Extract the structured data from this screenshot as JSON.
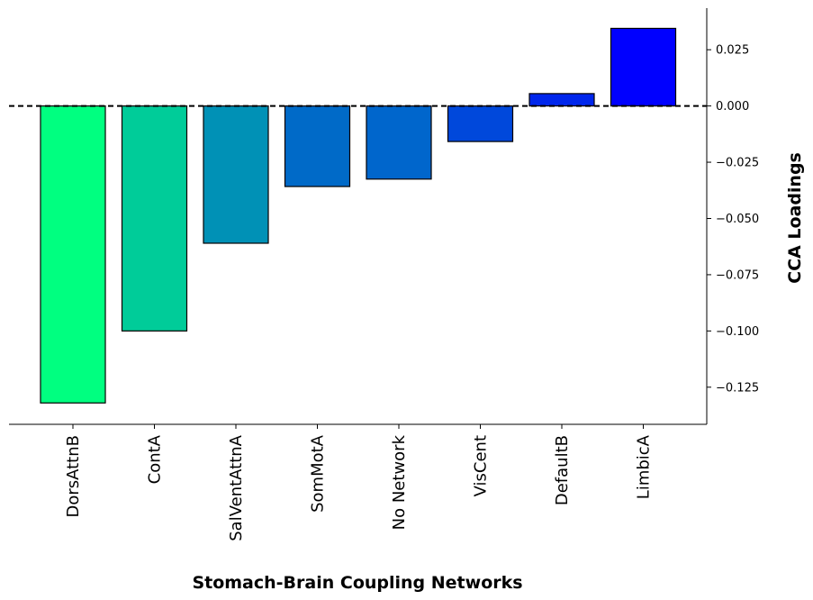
{
  "chart_data": {
    "type": "bar",
    "title": "",
    "xlabel": "Stomach-Brain Coupling Networks",
    "ylabel": "CCA Loadings",
    "ylabel_position": "right",
    "grid": false,
    "legend": "none",
    "reference_line": {
      "y": 0.0,
      "style": "dashed",
      "color": "#000000"
    },
    "ylim": [
      -0.1415,
      0.0435
    ],
    "yticks": [
      0.025,
      0.0,
      -0.025,
      -0.05,
      -0.075,
      -0.1,
      -0.125
    ],
    "ytick_labels": [
      "0.025",
      "0.000",
      "−0.025",
      "−0.050",
      "−0.075",
      "−0.100",
      "−0.125"
    ],
    "categories": [
      "DorsAttnB",
      "ContA",
      "SalVentAttnA",
      "SomMotA",
      "No Network",
      "VisCent",
      "DefaultB",
      "LimbicA"
    ],
    "values": [
      -0.132,
      -0.1,
      -0.061,
      -0.0358,
      -0.0325,
      -0.0158,
      0.0055,
      0.0345
    ],
    "colors": [
      "#00ff80",
      "#00cc99",
      "#0091b6",
      "#006ac8",
      "#0066cc",
      "#0048db",
      "#0026ec",
      "#0000ff"
    ],
    "bar_edge_color": "#000000"
  }
}
